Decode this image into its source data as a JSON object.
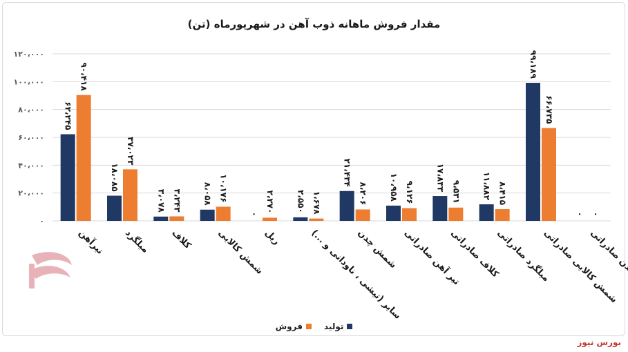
{
  "colors": {
    "production": "#203864",
    "sales": "#ed7d31",
    "grid": "#d9d9d9",
    "axis_text": "#595959",
    "logo": "#e8b3b8"
  },
  "watermark": "بورس نیوز",
  "chart_data": {
    "type": "bar",
    "title": "مقدار فروش ماهانه ذوب آهن در شهریورماه (تن)",
    "categories": [
      "تیرآهن",
      "میلگرد",
      "کلاف",
      "شمش کالایی",
      "ریل",
      "سایر (تیشی ، ناودانی و ...)",
      "شمش چدن",
      "تیر آهن صادراتی",
      "کلاف صادراتی",
      "میلگرد صادراتی",
      "شمش کالایی صادراتی",
      "شمش چدن صادراتی"
    ],
    "series": [
      {
        "name": "تولید",
        "values": [
          62245,
          18085,
          3078,
          8058,
          0,
          2550,
          21434,
          10958,
          17833,
          11882,
          99189,
          0
        ],
        "labels": [
          "۶۲،۲۴۵",
          "۱۸،۰۸۵",
          "۳،۰۷۸",
          "۸،۰۵۸",
          "۰",
          "۲،۵۵۰",
          "۲۱،۴۳۴",
          "۱۰،۹۵۸",
          "۱۷،۸۳۳",
          "۱۱،۸۸۲",
          "۹۹،۱۸۹",
          "۰"
        ]
      },
      {
        "name": "فروش",
        "values": [
          90418,
          37023,
          3243,
          10176,
          2270,
          1678,
          8206,
          9126,
          9531,
          8415,
          66735,
          0
        ],
        "labels": [
          "۹۰،۴۱۸",
          "۳۷،۰۲۳",
          "۳،۲۴۳",
          "۱۰،۱۷۶",
          "۲،۲۷۰",
          "۱،۶۷۸",
          "۸،۲۰۶",
          "۹،۱۲۶",
          "۹،۵۳۱",
          "۸،۴۱۵",
          "۶۶،۷۳۵",
          "۰"
        ]
      }
    ],
    "ylim": [
      0,
      120000
    ],
    "yticks": [
      0,
      20000,
      40000,
      60000,
      80000,
      100000,
      120000
    ],
    "ytick_labels": [
      "۰",
      "۲۰،۰۰۰",
      "۴۰،۰۰۰",
      "۶۰،۰۰۰",
      "۸۰،۰۰۰",
      "۱۰۰،۰۰۰",
      "۱۲۰،۰۰۰"
    ],
    "grid": true,
    "legend_position": "bottom"
  }
}
